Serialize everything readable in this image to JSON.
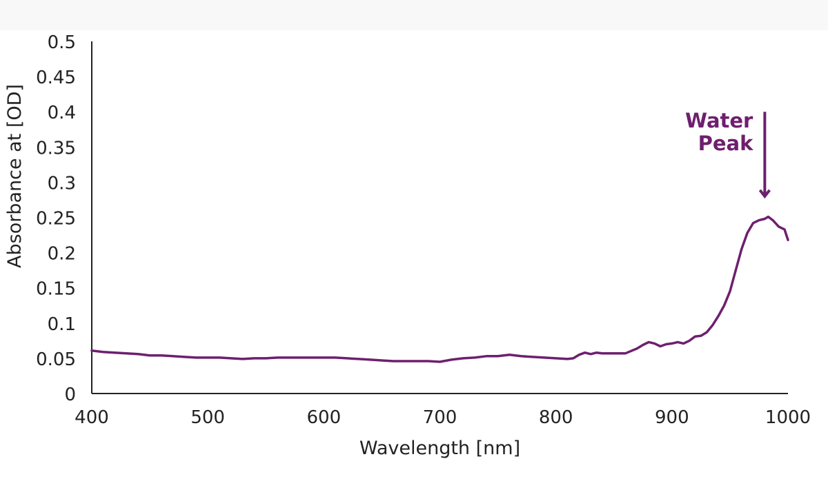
{
  "chart_data": {
    "type": "line",
    "title": "",
    "xlabel": "Wavelength [nm]",
    "ylabel": "Absorbance at [OD]",
    "xlim": [
      400,
      1000
    ],
    "ylim": [
      0,
      0.5
    ],
    "x_ticks": [
      "400",
      "500",
      "600",
      "700",
      "800",
      "900",
      "1000"
    ],
    "y_ticks": [
      "0",
      "0.05",
      "0.1",
      "0.15",
      "0.2",
      "0.25",
      "0.3",
      "0.35",
      "0.4",
      "0.45",
      "0.5"
    ],
    "grid": false,
    "legend": "none",
    "series": [
      {
        "color": "#6e1f6e",
        "points": [
          [
            400,
            0.061
          ],
          [
            410,
            0.059
          ],
          [
            420,
            0.058
          ],
          [
            430,
            0.057
          ],
          [
            440,
            0.056
          ],
          [
            450,
            0.054
          ],
          [
            460,
            0.054
          ],
          [
            470,
            0.053
          ],
          [
            480,
            0.052
          ],
          [
            490,
            0.051
          ],
          [
            500,
            0.051
          ],
          [
            510,
            0.051
          ],
          [
            520,
            0.05
          ],
          [
            530,
            0.049
          ],
          [
            540,
            0.05
          ],
          [
            550,
            0.05
          ],
          [
            560,
            0.051
          ],
          [
            570,
            0.051
          ],
          [
            580,
            0.051
          ],
          [
            590,
            0.051
          ],
          [
            600,
            0.051
          ],
          [
            610,
            0.051
          ],
          [
            620,
            0.05
          ],
          [
            630,
            0.049
          ],
          [
            640,
            0.048
          ],
          [
            650,
            0.047
          ],
          [
            660,
            0.046
          ],
          [
            670,
            0.046
          ],
          [
            680,
            0.046
          ],
          [
            690,
            0.046
          ],
          [
            700,
            0.045
          ],
          [
            710,
            0.048
          ],
          [
            720,
            0.05
          ],
          [
            730,
            0.051
          ],
          [
            740,
            0.053
          ],
          [
            750,
            0.053
          ],
          [
            760,
            0.055
          ],
          [
            770,
            0.053
          ],
          [
            780,
            0.052
          ],
          [
            790,
            0.051
          ],
          [
            800,
            0.05
          ],
          [
            810,
            0.049
          ],
          [
            815,
            0.05
          ],
          [
            820,
            0.055
          ],
          [
            825,
            0.058
          ],
          [
            830,
            0.056
          ],
          [
            835,
            0.058
          ],
          [
            840,
            0.057
          ],
          [
            850,
            0.057
          ],
          [
            860,
            0.057
          ],
          [
            870,
            0.064
          ],
          [
            875,
            0.069
          ],
          [
            880,
            0.073
          ],
          [
            885,
            0.071
          ],
          [
            890,
            0.067
          ],
          [
            895,
            0.07
          ],
          [
            900,
            0.071
          ],
          [
            905,
            0.073
          ],
          [
            910,
            0.071
          ],
          [
            915,
            0.075
          ],
          [
            920,
            0.081
          ],
          [
            925,
            0.082
          ],
          [
            930,
            0.087
          ],
          [
            935,
            0.097
          ],
          [
            940,
            0.11
          ],
          [
            945,
            0.125
          ],
          [
            950,
            0.145
          ],
          [
            955,
            0.175
          ],
          [
            960,
            0.205
          ],
          [
            965,
            0.228
          ],
          [
            970,
            0.242
          ],
          [
            975,
            0.246
          ],
          [
            980,
            0.248
          ],
          [
            983,
            0.251
          ],
          [
            987,
            0.246
          ],
          [
            992,
            0.237
          ],
          [
            997,
            0.233
          ],
          [
            1000,
            0.218
          ]
        ]
      }
    ],
    "annotations": [
      {
        "text_line1": "Water",
        "text_line2": "Peak",
        "arrow_x": 980,
        "arrow_y_top": 0.4,
        "arrow_y_bottom": 0.28,
        "color": "#6e1f6e"
      }
    ]
  }
}
